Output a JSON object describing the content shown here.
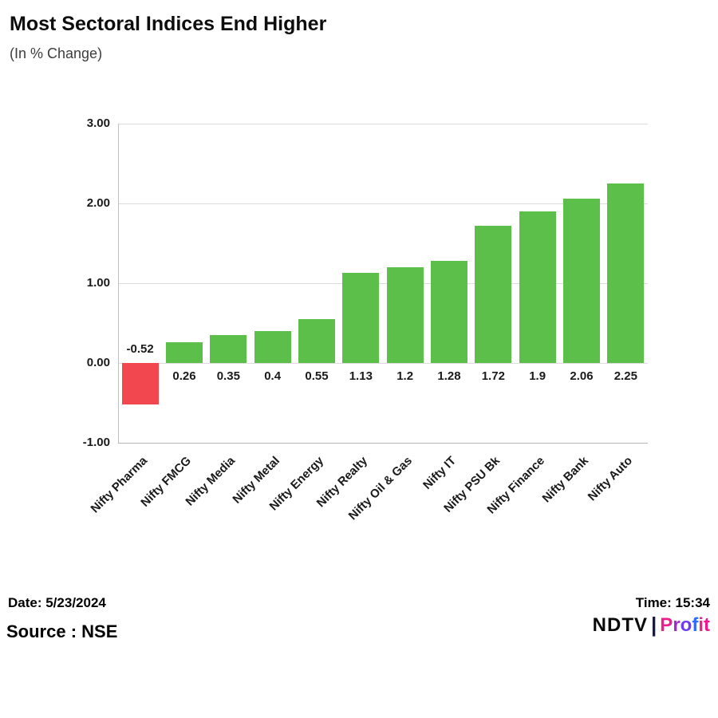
{
  "header": {
    "title": "Most Sectoral Indices End Higher",
    "subtitle": "(In % Change)"
  },
  "chart_data": {
    "type": "bar",
    "categories": [
      "Nifty Pharma",
      "Nifty FMCG",
      "Nifty Media",
      "Nifty Metal",
      "Nifty Energy",
      "Nifty Realty",
      "Nifty Oil & Gas",
      "Nifty IT",
      "Nifty PSU Bk",
      "Nifty Finance",
      "Nifty Bank",
      "Nifty Auto"
    ],
    "values": [
      -0.52,
      0.26,
      0.35,
      0.4,
      0.55,
      1.13,
      1.2,
      1.28,
      1.72,
      1.9,
      2.06,
      2.25
    ],
    "value_labels": [
      "-0.52",
      "0.26",
      "0.35",
      "0.4",
      "0.55",
      "1.13",
      "1.2",
      "1.28",
      "1.72",
      "1.9",
      "2.06",
      "2.25"
    ],
    "title": "Most Sectoral Indices End Higher",
    "subtitle": "(In % Change)",
    "xlabel": "",
    "ylabel": "",
    "ylim": [
      -1,
      3
    ],
    "yticks": [
      -1,
      0,
      1,
      2,
      3
    ],
    "ytick_labels": [
      "-1.00",
      "0.00",
      "1.00",
      "2.00",
      "3.00"
    ],
    "grid": true,
    "legend": "none",
    "positive_color": "#5cbf49",
    "negative_color": "#f2474e"
  },
  "footer": {
    "date_label": "Date: 5/23/2024",
    "time_label": "Time: 15:34",
    "source_label": "Source : NSE",
    "brand": {
      "ndtv": "NDTV",
      "separator": "|",
      "profit": "Profit",
      "profit_letter_colors": [
        "#ec1e8c",
        "#a428c9",
        "#6d3bf0",
        "#2f6bff",
        "#e9218a",
        "#f0168c"
      ]
    }
  }
}
